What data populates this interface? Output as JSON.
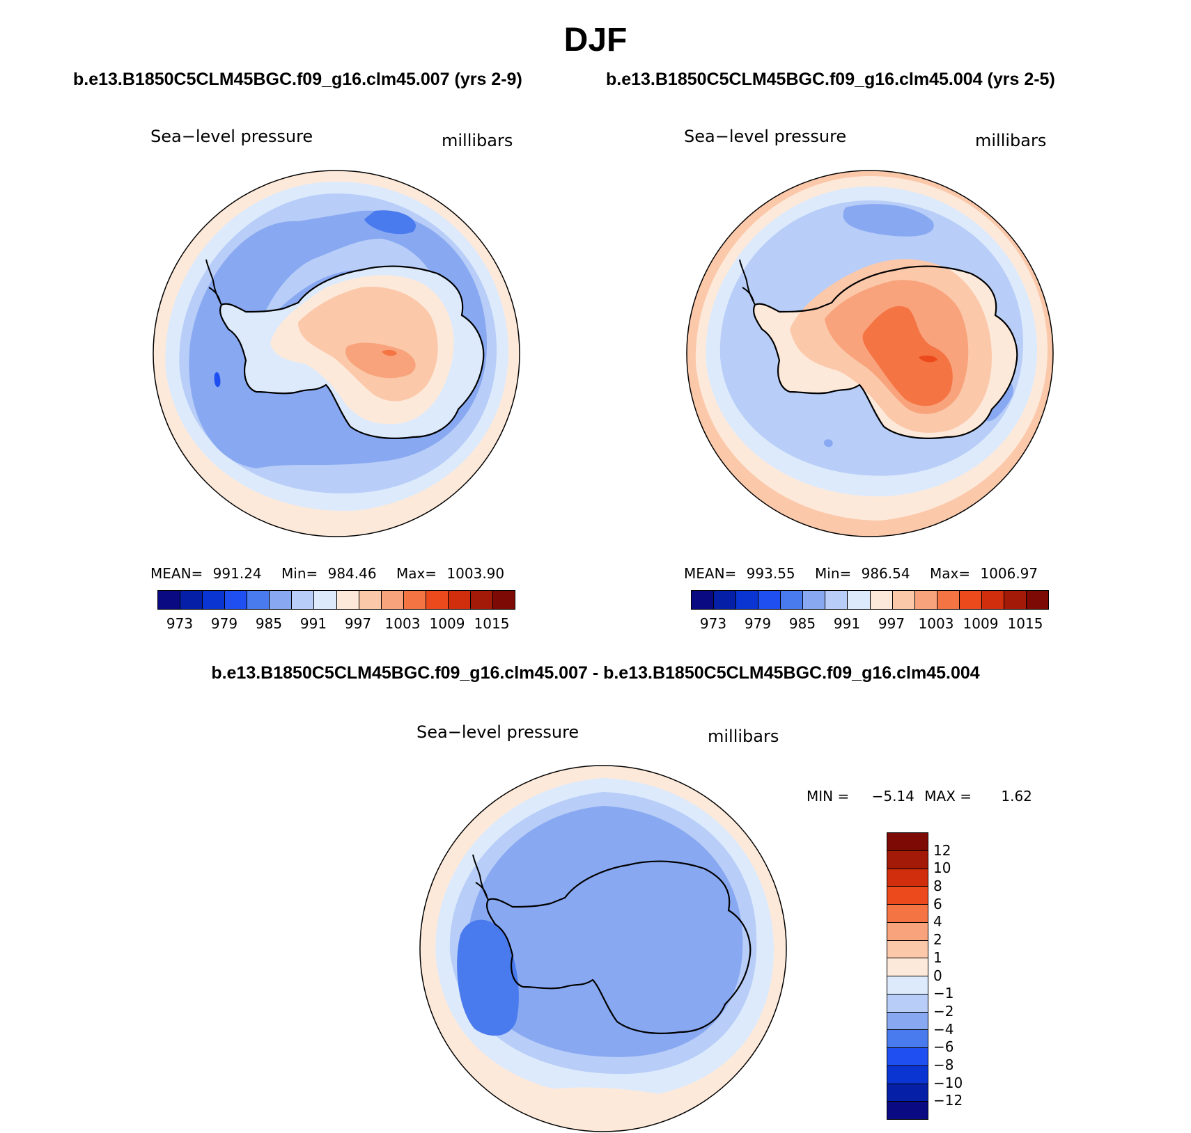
{
  "title": "DJF",
  "left_case": "b.e13.B1850C5CLM45BGC.f09_g16.clm45.007 (yrs 2-9)",
  "right_case": "b.e13.B1850C5CLM45BGC.f09_g16.clm45.004 (yrs 2-5)",
  "diff_case": "b.e13.B1850C5CLM45BGC.f09_g16.clm45.007 - b.e13.B1850C5CLM45BGC.f09_g16.clm45.004",
  "colors": {
    "div": [
      "#0a0a82",
      "#0520a6",
      "#0a35d2",
      "#1f4ff0",
      "#4a7bee",
      "#88a9f2",
      "#b8cdf7",
      "#dceafc",
      "#fde9da",
      "#fbc8aa",
      "#f8a37c",
      "#f57444",
      "#ec4a1c",
      "#d02e0c",
      "#a31a08",
      "#7d0a05"
    ],
    "coast": "#000000"
  },
  "panels": [
    {
      "field": "Sea−level pressure",
      "units": "millibars",
      "mean_label": "MEAN=",
      "mean": "991.24",
      "min_label": "Min=",
      "min": "984.46",
      "max_label": "Max=",
      "max": "1003.90",
      "ticks": [
        "973",
        "979",
        "985",
        "991",
        "997",
        "1003",
        "1009",
        "1015"
      ]
    },
    {
      "field": "Sea−level pressure",
      "units": "millibars",
      "mean_label": "MEAN=",
      "mean": "993.55",
      "min_label": "Min=",
      "min": "986.54",
      "max_label": "Max=",
      "max": "1006.97",
      "ticks": [
        "973",
        "979",
        "985",
        "991",
        "997",
        "1003",
        "1009",
        "1015"
      ]
    },
    {
      "field": "Sea−level pressure",
      "units": "millibars",
      "min_label": "MIN =",
      "min": "−5.14",
      "max_label": "MAX =",
      "max": "1.62",
      "ticks": [
        "12",
        "10",
        "8",
        "6",
        "4",
        "2",
        "1",
        "0",
        "−1",
        "−2",
        "−4",
        "−6",
        "−8",
        "−10",
        "−12"
      ]
    }
  ]
}
